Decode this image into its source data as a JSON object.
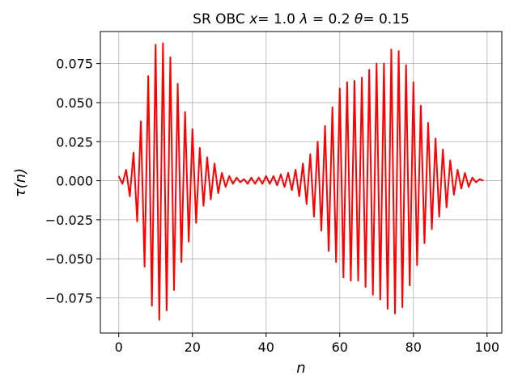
{
  "chart_data": {
    "type": "line",
    "title": "SR OBC x= 1.0 λ = 0.2 θ= 0.15",
    "title_parts": {
      "prefix": "SR OBC ",
      "x_sym": "x",
      "x_val": "= 1.0 ",
      "lambda_sym": "λ",
      "lambda_val": " = 0.2 ",
      "theta_sym": "θ",
      "theta_val": "= 0.15"
    },
    "xlabel": "n",
    "ylabel": "τ(n)",
    "xlim": [
      -5,
      104
    ],
    "ylim": [
      -0.0975,
      0.0955
    ],
    "grid": true,
    "x_ticks": [
      0,
      20,
      40,
      60,
      80,
      100
    ],
    "x_tick_labels": [
      "0",
      "20",
      "40",
      "60",
      "80",
      "100"
    ],
    "y_ticks": [
      -0.075,
      -0.05,
      -0.025,
      0.0,
      0.025,
      0.05,
      0.075
    ],
    "y_tick_labels": [
      "−0.075",
      "−0.050",
      "−0.025",
      "0.000",
      "0.025",
      "0.050",
      "0.075"
    ],
    "series": [
      {
        "color": "#ff0000",
        "x": [
          0,
          1,
          2,
          3,
          4,
          5,
          6,
          7,
          8,
          9,
          10,
          11,
          12,
          13,
          14,
          15,
          16,
          17,
          18,
          19,
          20,
          21,
          22,
          23,
          24,
          25,
          26,
          27,
          28,
          29,
          30,
          31,
          32,
          33,
          34,
          35,
          36,
          37,
          38,
          39,
          40,
          41,
          42,
          43,
          44,
          45,
          46,
          47,
          48,
          49,
          50,
          51,
          52,
          53,
          54,
          55,
          56,
          57,
          58,
          59,
          60,
          61,
          62,
          63,
          64,
          65,
          66,
          67,
          68,
          69,
          70,
          71,
          72,
          73,
          74,
          75,
          76,
          77,
          78,
          79,
          80,
          81,
          82,
          83,
          84,
          85,
          86,
          87,
          88,
          89,
          90,
          91,
          92,
          93,
          94,
          95,
          96,
          97,
          98,
          99
        ],
        "y": [
          0.003,
          -0.002,
          0.007,
          -0.01,
          0.018,
          -0.026,
          0.038,
          -0.055,
          0.067,
          -0.08,
          0.087,
          -0.089,
          0.088,
          -0.083,
          0.079,
          -0.07,
          0.062,
          -0.052,
          0.044,
          -0.039,
          0.033,
          -0.027,
          0.021,
          -0.016,
          0.015,
          -0.012,
          0.011,
          -0.008,
          0.005,
          -0.004,
          0.003,
          -0.002,
          0.002,
          -0.001,
          0.001,
          -0.002,
          0.002,
          -0.002,
          0.002,
          -0.002,
          0.003,
          -0.002,
          0.003,
          -0.003,
          0.004,
          -0.004,
          0.005,
          -0.006,
          0.007,
          -0.01,
          0.011,
          -0.015,
          0.017,
          -0.023,
          0.025,
          -0.032,
          0.035,
          -0.045,
          0.047,
          -0.052,
          0.059,
          -0.062,
          0.063,
          -0.064,
          0.064,
          -0.064,
          0.066,
          -0.068,
          0.071,
          -0.073,
          0.075,
          -0.076,
          0.075,
          -0.082,
          0.084,
          -0.085,
          0.083,
          -0.081,
          0.074,
          -0.067,
          0.063,
          -0.054,
          0.048,
          -0.04,
          0.037,
          -0.031,
          0.027,
          -0.023,
          0.02,
          -0.017,
          0.013,
          -0.009,
          0.007,
          -0.005,
          0.005,
          -0.004,
          0.002,
          -0.001,
          0.001,
          0.0
        ]
      }
    ]
  }
}
